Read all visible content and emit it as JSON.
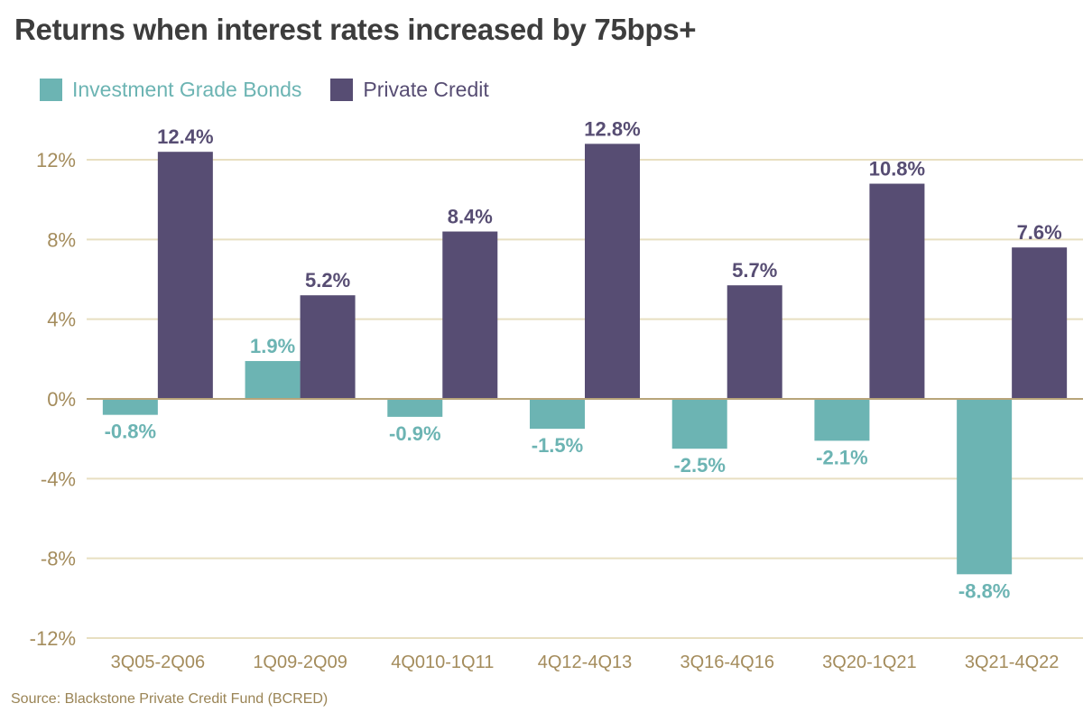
{
  "title": "Returns when interest rates increased by 75bps+",
  "source": "Source: Blackstone Private Credit Fund (BCRED)",
  "colors": {
    "investment_grade": "#6cb4b3",
    "private_credit": "#574d73",
    "axis_text": "#a48c5c",
    "grid": "#e8dfc1",
    "zero_line": "#b8a57a",
    "title": "#3d3d3d"
  },
  "chart_data": {
    "type": "bar",
    "title": "Returns when interest rates increased by 75bps+",
    "categories": [
      "3Q05-2Q06",
      "1Q09-2Q09",
      "4Q010-1Q11",
      "4Q12-4Q13",
      "3Q16-4Q16",
      "3Q20-1Q21",
      "3Q21-4Q22"
    ],
    "series": [
      {
        "name": "Investment Grade Bonds",
        "values": [
          -0.8,
          1.9,
          -0.9,
          -1.5,
          -2.5,
          -2.1,
          -8.8
        ],
        "labels": [
          "-0.8%",
          "1.9%",
          "-0.9%",
          "-1.5%",
          "-2.5%",
          "-2.1%",
          "-8.8%"
        ]
      },
      {
        "name": "Private Credit",
        "values": [
          12.4,
          5.2,
          8.4,
          12.8,
          5.7,
          10.8,
          7.6
        ],
        "labels": [
          "12.4%",
          "5.2%",
          "8.4%",
          "12.8%",
          "5.7%",
          "10.8%",
          "7.6%"
        ]
      }
    ],
    "yticks": [
      12,
      8,
      4,
      0,
      -4,
      -8,
      -12
    ],
    "ytick_labels": [
      "12%",
      "8%",
      "4%",
      "0%",
      "-4%",
      "-8%",
      "-12%"
    ],
    "ylim": [
      -12,
      12
    ],
    "grid": true,
    "legend_position": "top-left"
  }
}
